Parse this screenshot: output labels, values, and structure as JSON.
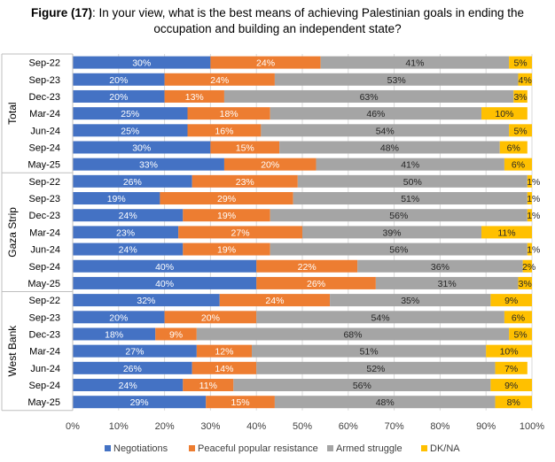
{
  "title": {
    "figure_label": "Figure (17)",
    "text": ": In your view, what is the best means of achieving Palestinian goals in ending the occupation and building an independent state?"
  },
  "colors": {
    "Negotiations": "#4472c4",
    "Peaceful popular resistance": "#ed7d31",
    "Armed struggle": "#a5a5a5",
    "DK/NA": "#ffc000"
  },
  "chart_data": {
    "type": "bar",
    "orientation": "horizontal",
    "stacked": "percent",
    "xlim": [
      0,
      100
    ],
    "xticks": [
      "0%",
      "10%",
      "20%",
      "30%",
      "40%",
      "50%",
      "60%",
      "70%",
      "80%",
      "90%",
      "100%"
    ],
    "legend": [
      "Negotiations",
      "Peaceful popular resistance",
      "Armed struggle",
      "DK/NA"
    ],
    "legend_position": "bottom",
    "groups": [
      {
        "name": "Total",
        "rows": [
          {
            "label": "Sep-22",
            "values": [
              30,
              24,
              41,
              5
            ]
          },
          {
            "label": "Sep-23",
            "values": [
              20,
              24,
              53,
              4
            ]
          },
          {
            "label": "Dec-23",
            "values": [
              20,
              13,
              63,
              3
            ]
          },
          {
            "label": "Mar-24",
            "values": [
              25,
              18,
              46,
              10
            ]
          },
          {
            "label": "Jun-24",
            "values": [
              25,
              16,
              54,
              5
            ]
          },
          {
            "label": "Sep-24",
            "values": [
              30,
              15,
              48,
              6
            ]
          },
          {
            "label": "May-25",
            "values": [
              33,
              20,
              41,
              6
            ]
          }
        ]
      },
      {
        "name": "Gaza Strip",
        "rows": [
          {
            "label": "Sep-22",
            "values": [
              26,
              23,
              50,
              1
            ]
          },
          {
            "label": "Sep-23",
            "values": [
              19,
              29,
              51,
              1
            ]
          },
          {
            "label": "Dec-23",
            "values": [
              24,
              19,
              56,
              1
            ]
          },
          {
            "label": "Mar-24",
            "values": [
              23,
              27,
              39,
              11
            ]
          },
          {
            "label": "Jun-24",
            "values": [
              24,
              19,
              56,
              1
            ]
          },
          {
            "label": "Sep-24",
            "values": [
              40,
              22,
              36,
              2
            ]
          },
          {
            "label": "May-25",
            "values": [
              40,
              26,
              31,
              3
            ]
          }
        ]
      },
      {
        "name": "West Bank",
        "rows": [
          {
            "label": "Sep-22",
            "values": [
              32,
              24,
              35,
              9
            ]
          },
          {
            "label": "Sep-23",
            "values": [
              20,
              20,
              54,
              6
            ]
          },
          {
            "label": "Dec-23",
            "values": [
              18,
              9,
              68,
              5
            ]
          },
          {
            "label": "Mar-24",
            "values": [
              27,
              12,
              51,
              10
            ]
          },
          {
            "label": "Jun-24",
            "values": [
              26,
              14,
              52,
              7
            ]
          },
          {
            "label": "Sep-24",
            "values": [
              24,
              11,
              56,
              9
            ]
          },
          {
            "label": "May-25",
            "values": [
              29,
              15,
              48,
              8
            ]
          }
        ]
      }
    ]
  }
}
